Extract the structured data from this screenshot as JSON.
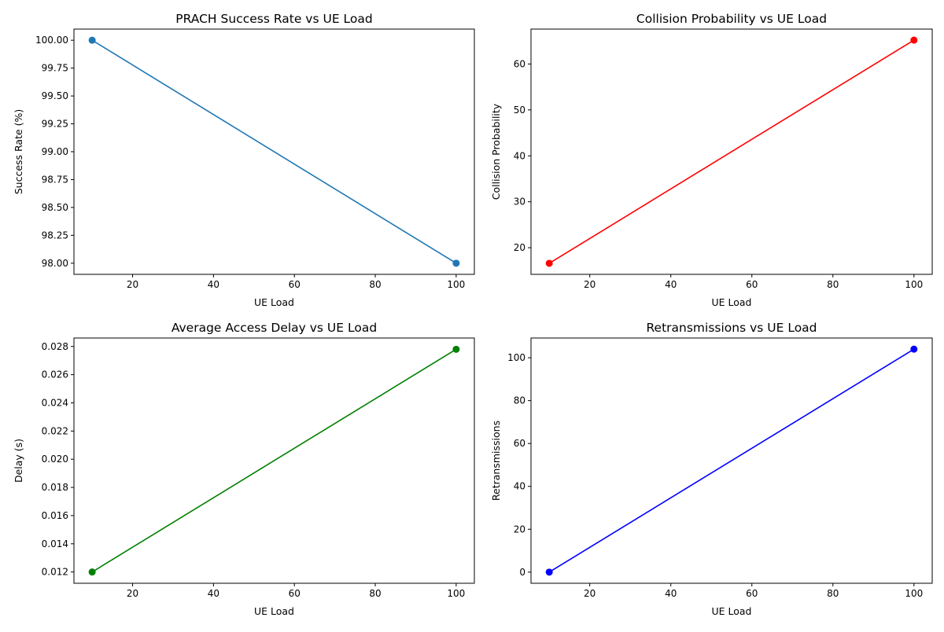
{
  "chart_data": [
    {
      "type": "line",
      "title": "PRACH Success Rate vs UE Load",
      "xlabel": "UE Load",
      "ylabel": "Success Rate (%)",
      "xlim": [
        5.5,
        104.5
      ],
      "ylim": [
        97.9,
        100.1
      ],
      "xticks": [
        20,
        40,
        60,
        80,
        100
      ],
      "yticks": [
        98.0,
        98.25,
        98.5,
        98.75,
        99.0,
        99.25,
        99.5,
        99.75,
        100.0
      ],
      "ytick_labels": [
        "98.00",
        "98.25",
        "98.50",
        "98.75",
        "99.00",
        "99.25",
        "99.50",
        "99.75",
        "100.00"
      ],
      "color": "#1f77b4",
      "marker": "circle",
      "grid": false,
      "x": [
        10,
        100
      ],
      "y": [
        100.0,
        98.0
      ]
    },
    {
      "type": "line",
      "title": "Collision Probability vs UE Load",
      "xlabel": "UE Load",
      "ylabel": "Collision Probability",
      "xlim": [
        5.5,
        104.5
      ],
      "ylim": [
        14.2,
        67.6
      ],
      "xticks": [
        20,
        40,
        60,
        80,
        100
      ],
      "yticks": [
        20,
        30,
        40,
        50,
        60
      ],
      "ytick_labels": [
        "20",
        "30",
        "40",
        "50",
        "60"
      ],
      "color": "#ff0000",
      "marker": "circle",
      "grid": false,
      "x": [
        10,
        100
      ],
      "y": [
        16.6,
        65.2
      ]
    },
    {
      "type": "line",
      "title": "Average Access Delay vs UE Load",
      "xlabel": "UE Load",
      "ylabel": "Delay (s)",
      "xlim": [
        5.5,
        104.5
      ],
      "ylim": [
        0.0112,
        0.0286
      ],
      "xticks": [
        20,
        40,
        60,
        80,
        100
      ],
      "yticks": [
        0.012,
        0.014,
        0.016,
        0.018,
        0.02,
        0.022,
        0.024,
        0.026,
        0.028
      ],
      "ytick_labels": [
        "0.012",
        "0.014",
        "0.016",
        "0.018",
        "0.020",
        "0.022",
        "0.024",
        "0.026",
        "0.028"
      ],
      "color": "#008000",
      "marker": "circle",
      "grid": false,
      "x": [
        10,
        100
      ],
      "y": [
        0.012,
        0.0278
      ]
    },
    {
      "type": "line",
      "title": "Retransmissions vs UE Load",
      "xlabel": "UE Load",
      "ylabel": "Retransmissions",
      "xlim": [
        5.5,
        104.5
      ],
      "ylim": [
        -5.2,
        109.2
      ],
      "xticks": [
        20,
        40,
        60,
        80,
        100
      ],
      "yticks": [
        0,
        20,
        40,
        60,
        80,
        100
      ],
      "ytick_labels": [
        "0",
        "20",
        "40",
        "60",
        "80",
        "100"
      ],
      "color": "#0000ff",
      "marker": "circle",
      "grid": false,
      "x": [
        10,
        100
      ],
      "y": [
        0,
        104
      ]
    }
  ]
}
